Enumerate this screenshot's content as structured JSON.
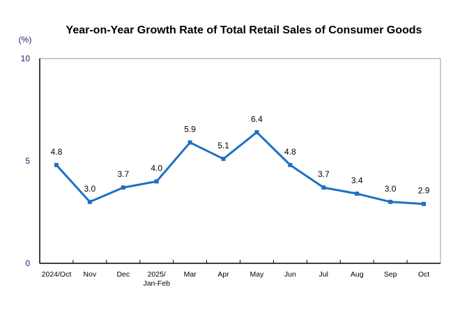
{
  "chart_data": {
    "type": "line",
    "title": "Year-on-Year Growth Rate of Total Retail Sales of Consumer Goods",
    "ylabel": "(%)",
    "xlabel": "",
    "categories": [
      "2024/Oct",
      "Nov",
      "Dec",
      "2025/\nJan-Feb",
      "Mar",
      "Apr",
      "May",
      "Jun",
      "Jul",
      "Aug",
      "Sep",
      "Oct"
    ],
    "values": [
      4.8,
      3.0,
      3.7,
      4.0,
      5.9,
      5.1,
      6.4,
      4.8,
      3.7,
      3.4,
      3.0,
      2.9
    ],
    "data_labels": [
      "4.8",
      "3.0",
      "3.7",
      "4.0",
      "5.9",
      "5.1",
      "6.4",
      "4.8",
      "3.7",
      "3.4",
      "3.0",
      "2.9"
    ],
    "ylim": [
      0,
      10
    ],
    "yticks": [
      0,
      5,
      10
    ],
    "ytick_labels": [
      "0",
      "5",
      "10"
    ],
    "grid": false,
    "legend": "none",
    "line_color": "#1F6FC5",
    "ytick_color": "#1a1a6e"
  }
}
